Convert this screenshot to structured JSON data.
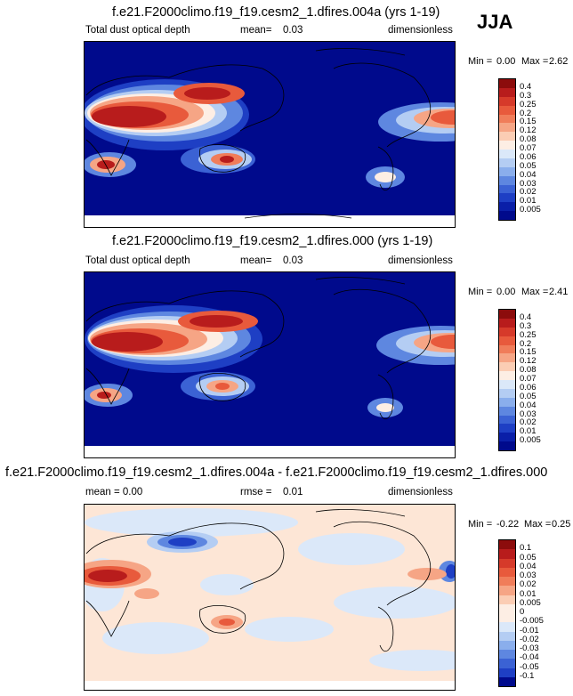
{
  "season": "JJA",
  "panels": [
    {
      "title": "f.e21.F2000climo.f19_f19.cesm2_1.dfires.004a (yrs 1-19)",
      "left_label": "Total dust optical depth",
      "stat_label": "mean=",
      "stat_value": "0.03",
      "units": "dimensionless",
      "min_label": "Min =",
      "min_value": "0.00",
      "max_label": "Max =",
      "max_value": "2.62",
      "levels": [
        "0.4",
        "0.3",
        "0.25",
        "0.2",
        "0.15",
        "0.12",
        "0.08",
        "0.07",
        "0.06",
        "0.05",
        "0.04",
        "0.03",
        "0.02",
        "0.01",
        "0.005"
      ],
      "colors": [
        "#8c0c0c",
        "#b81c1c",
        "#d63a2a",
        "#e85a3c",
        "#f07d5a",
        "#f6a585",
        "#fbcdb4",
        "#fdeee4",
        "#dbe8f9",
        "#b4cdf3",
        "#8aaeec",
        "#5e87e0",
        "#3b62d4",
        "#1e3fc4",
        "#0a1fa8",
        "#000a8c"
      ],
      "background_color": "#000a8c"
    },
    {
      "title": "f.e21.F2000climo.f19_f19.cesm2_1.dfires.000 (yrs 1-19)",
      "left_label": "Total dust optical depth",
      "stat_label": "mean=",
      "stat_value": "0.03",
      "units": "dimensionless",
      "min_label": "Min =",
      "min_value": "0.00",
      "max_label": "Max =",
      "max_value": "2.41",
      "levels": [
        "0.4",
        "0.3",
        "0.25",
        "0.2",
        "0.15",
        "0.12",
        "0.08",
        "0.07",
        "0.06",
        "0.05",
        "0.04",
        "0.03",
        "0.02",
        "0.01",
        "0.005"
      ],
      "colors": [
        "#8c0c0c",
        "#b81c1c",
        "#d63a2a",
        "#e85a3c",
        "#f07d5a",
        "#f6a585",
        "#fbcdb4",
        "#fdeee4",
        "#dbe8f9",
        "#b4cdf3",
        "#8aaeec",
        "#5e87e0",
        "#3b62d4",
        "#1e3fc4",
        "#0a1fa8",
        "#000a8c"
      ],
      "background_color": "#000a8c"
    },
    {
      "title": "f.e21.F2000climo.f19_f19.cesm2_1.dfires.004a - f.e21.F2000climo.f19_f19.cesm2_1.dfires.000",
      "left_label": "mean =  0.00",
      "stat_label": "rmse =",
      "stat_value": "0.01",
      "units": "dimensionless",
      "min_label": "Min =",
      "min_value": "-0.22",
      "max_label": "Max =",
      "max_value": "0.25",
      "levels": [
        "0.1",
        "0.05",
        "0.04",
        "0.03",
        "0.02",
        "0.01",
        "0.005",
        "0",
        "-0.005",
        "-0.01",
        "-0.02",
        "-0.03",
        "-0.04",
        "-0.05",
        "-0.1"
      ],
      "colors": [
        "#8c0c0c",
        "#b81c1c",
        "#d63a2a",
        "#e85a3c",
        "#f07d5a",
        "#f6a585",
        "#fbcdb4",
        "#fdeee4",
        "#fdeee4",
        "#dbe8f9",
        "#b4cdf3",
        "#8aaeec",
        "#5e87e0",
        "#3b62d4",
        "#1e3fc4",
        "#000a8c"
      ],
      "background_color": "#fde6d6"
    }
  ],
  "chart_data": [
    {
      "type": "heatmap",
      "title": "f.e21.F2000climo.f19_f19.cesm2_1.dfires.004a (yrs 1-19)",
      "variable": "Total dust optical depth",
      "units": "dimensionless",
      "mean": 0.03,
      "min": 0.0,
      "max": 2.62,
      "contour_levels": [
        0.005,
        0.01,
        0.02,
        0.03,
        0.04,
        0.05,
        0.06,
        0.07,
        0.08,
        0.12,
        0.15,
        0.2,
        0.25,
        0.3,
        0.4
      ],
      "season": "JJA"
    },
    {
      "type": "heatmap",
      "title": "f.e21.F2000climo.f19_f19.cesm2_1.dfires.000 (yrs 1-19)",
      "variable": "Total dust optical depth",
      "units": "dimensionless",
      "mean": 0.03,
      "min": 0.0,
      "max": 2.41,
      "contour_levels": [
        0.005,
        0.01,
        0.02,
        0.03,
        0.04,
        0.05,
        0.06,
        0.07,
        0.08,
        0.12,
        0.15,
        0.2,
        0.25,
        0.3,
        0.4
      ],
      "season": "JJA"
    },
    {
      "type": "heatmap",
      "title": "f.e21.F2000climo.f19_f19.cesm2_1.dfires.004a - f.e21.F2000climo.f19_f19.cesm2_1.dfires.000",
      "units": "dimensionless",
      "mean": 0.0,
      "rmse": 0.01,
      "min": -0.22,
      "max": 0.25,
      "contour_levels": [
        -0.1,
        -0.05,
        -0.04,
        -0.03,
        -0.02,
        -0.01,
        -0.005,
        0,
        0.005,
        0.01,
        0.02,
        0.03,
        0.04,
        0.05,
        0.1
      ],
      "season": "JJA"
    }
  ]
}
